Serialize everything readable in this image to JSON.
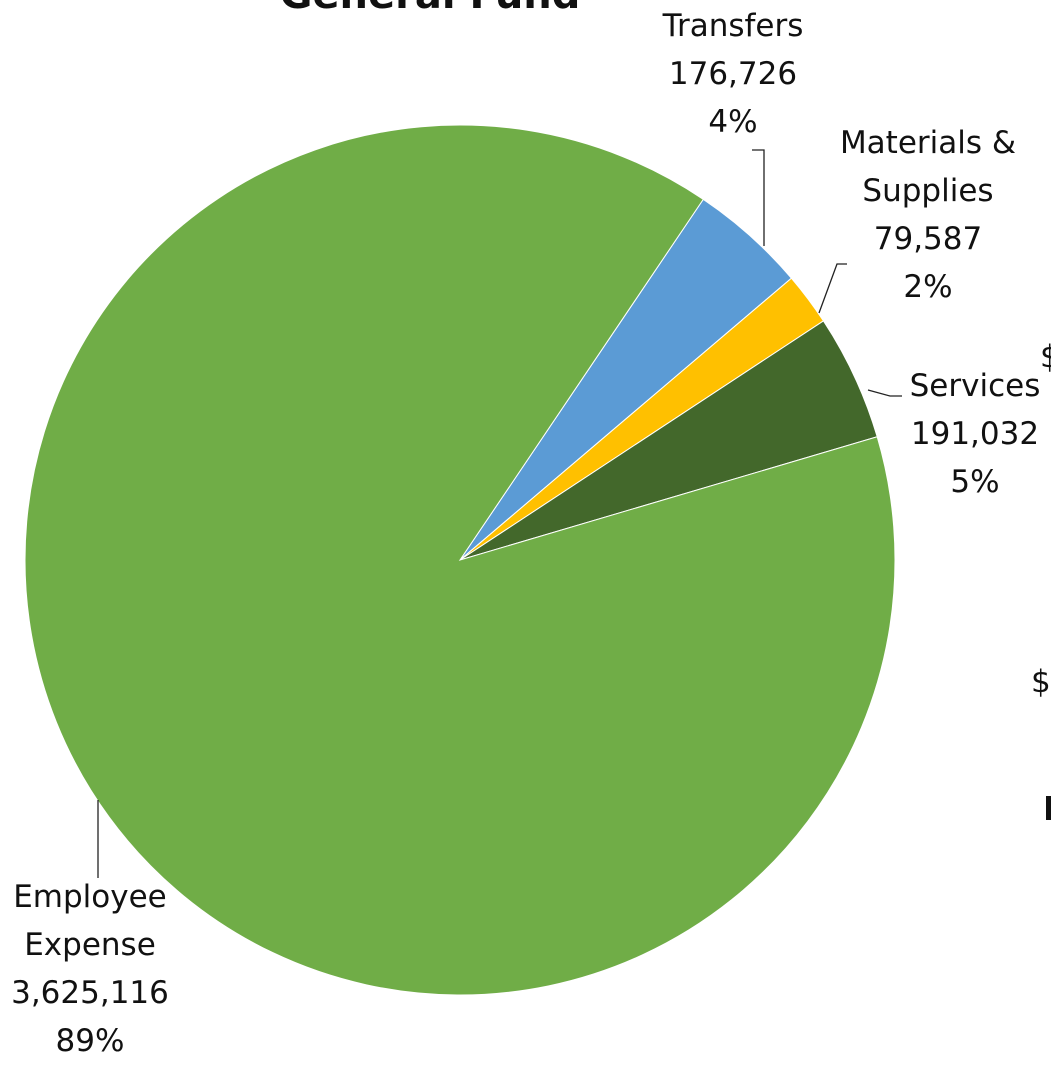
{
  "title": "General Fund",
  "edge_marks": [
    "$",
    "$"
  ],
  "chart_data": {
    "type": "pie",
    "title": "General Fund",
    "start_angle_deg": 34,
    "direction": "clockwise",
    "slices": [
      {
        "label_lines": [
          "Transfers"
        ],
        "value": 176726,
        "value_text": "176,726",
        "percent_text": "4%",
        "color": "#5b9bd5"
      },
      {
        "label_lines": [
          "Materials &",
          "Supplies"
        ],
        "value": 79587,
        "value_text": "79,587",
        "percent_text": "2%",
        "color": "#ffc000"
      },
      {
        "label_lines": [
          "Services"
        ],
        "value": 191032,
        "value_text": "191,032",
        "percent_text": "5%",
        "color": "#43682b"
      },
      {
        "label_lines": [
          "Employee",
          "Expense"
        ],
        "value": 3625116,
        "value_text": "3,625,116",
        "percent_text": "89%",
        "color": "#70ad47"
      }
    ]
  }
}
